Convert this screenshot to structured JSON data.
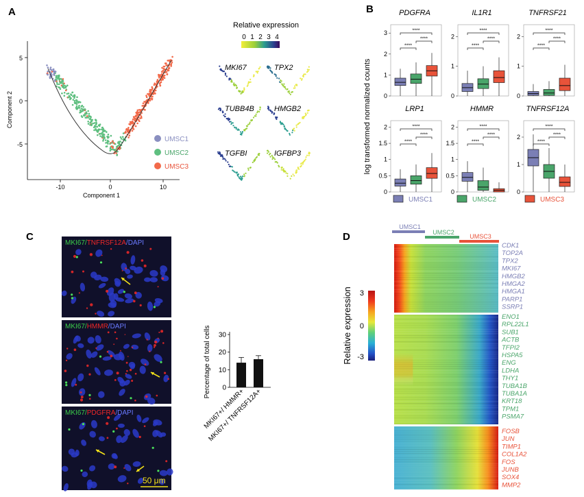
{
  "panel_labels": {
    "a": "A",
    "b": "B",
    "c": "C",
    "d": "D"
  },
  "colors": {
    "umsc1": "#8a8fc0",
    "umsc2": "#5fbf80",
    "umsc3": "#f26a4a",
    "gene1": "#7b7fb5",
    "gene2": "#4aa56a",
    "gene3": "#e8533a"
  },
  "panelA": {
    "xlabel": "Component 1",
    "ylabel": "Component 2",
    "xticks": [
      "-10",
      "0",
      "10"
    ],
    "yticks": [
      "5",
      "0",
      "-5"
    ],
    "legend": [
      "UMSC1",
      "UMSC2",
      "UMSC3"
    ],
    "expr_title": "Relative expression",
    "expr_ticks": [
      "0",
      "1",
      "2",
      "3",
      "4"
    ],
    "genes": [
      "MKI67",
      "TPX2",
      "TUBB4B",
      "HMGB2",
      "TGFBI",
      "IGFBP3"
    ]
  },
  "panelB": {
    "ylabel": "log transformed normalized counts",
    "stars": "****",
    "legend": [
      "UMSC1",
      "UMSC2",
      "UMSC3"
    ]
  },
  "chart_data": [
    {
      "type": "box",
      "title": "PDGFRA",
      "series": [
        "UMSC1",
        "UMSC2",
        "UMSC3"
      ],
      "yticks": [
        0,
        1,
        2,
        3
      ],
      "ylim": [
        0,
        3.4
      ],
      "boxes": [
        {
          "group": "UMSC1",
          "min": 0.0,
          "q1": 0.5,
          "median": 0.65,
          "q3": 0.85,
          "max": 1.3
        },
        {
          "group": "UMSC2",
          "min": 0.0,
          "q1": 0.6,
          "median": 0.8,
          "q3": 1.05,
          "max": 1.6
        },
        {
          "group": "UMSC3",
          "min": 0.0,
          "q1": 0.95,
          "median": 1.2,
          "q3": 1.45,
          "max": 2.05
        }
      ],
      "significance": [
        "1-2: ****",
        "2-3: ****",
        "1-3: ****"
      ]
    },
    {
      "type": "box",
      "title": "IL1R1",
      "series": [
        "UMSC1",
        "UMSC2",
        "UMSC3"
      ],
      "yticks": [
        0,
        1,
        2
      ],
      "ylim": [
        0,
        2.4
      ],
      "boxes": [
        {
          "group": "UMSC1",
          "min": 0.0,
          "q1": 0.15,
          "median": 0.28,
          "q3": 0.42,
          "max": 0.85
        },
        {
          "group": "UMSC2",
          "min": 0.0,
          "q1": 0.25,
          "median": 0.4,
          "q3": 0.58,
          "max": 1.0
        },
        {
          "group": "UMSC3",
          "min": 0.0,
          "q1": 0.45,
          "median": 0.62,
          "q3": 0.85,
          "max": 1.3
        }
      ],
      "significance": [
        "1-2: ****",
        "2-3: ****",
        "1-3: ****"
      ]
    },
    {
      "type": "box",
      "title": "TNFRSF21",
      "series": [
        "UMSC1",
        "UMSC2",
        "UMSC3"
      ],
      "yticks": [
        0,
        1,
        2
      ],
      "ylim": [
        0,
        2.4
      ],
      "boxes": [
        {
          "group": "UMSC1",
          "min": 0.0,
          "q1": 0.02,
          "median": 0.08,
          "q3": 0.15,
          "max": 0.4
        },
        {
          "group": "UMSC2",
          "min": 0.0,
          "q1": 0.02,
          "median": 0.1,
          "q3": 0.22,
          "max": 0.5
        },
        {
          "group": "UMSC3",
          "min": 0.0,
          "q1": 0.18,
          "median": 0.35,
          "q3": 0.6,
          "max": 1.05
        }
      ],
      "significance": [
        "1-2: ****",
        "2-3: ****",
        "1-3: ****"
      ]
    },
    {
      "type": "box",
      "title": "LRP1",
      "series": [
        "UMSC1",
        "UMSC2",
        "UMSC3"
      ],
      "yticks": [
        0,
        0.5,
        1.0,
        1.5,
        2.0
      ],
      "ylim": [
        0,
        2.2
      ],
      "boxes": [
        {
          "group": "UMSC1",
          "min": 0.0,
          "q1": 0.18,
          "median": 0.27,
          "q3": 0.4,
          "max": 0.7
        },
        {
          "group": "UMSC2",
          "min": 0.0,
          "q1": 0.24,
          "median": 0.35,
          "q3": 0.5,
          "max": 0.85
        },
        {
          "group": "UMSC3",
          "min": 0.0,
          "q1": 0.42,
          "median": 0.57,
          "q3": 0.75,
          "max": 1.2
        }
      ],
      "significance": [
        "1-2: ****",
        "2-3: ****",
        "1-3: ****"
      ]
    },
    {
      "type": "box",
      "title": "HMMR",
      "series": [
        "UMSC1",
        "UMSC2",
        "UMSC3"
      ],
      "yticks": [
        0,
        0.5,
        1.0,
        1.5,
        2.0
      ],
      "ylim": [
        0,
        2.2
      ],
      "boxes": [
        {
          "group": "UMSC1",
          "min": 0.0,
          "q1": 0.33,
          "median": 0.45,
          "q3": 0.6,
          "max": 0.95
        },
        {
          "group": "UMSC2",
          "min": 0.0,
          "q1": 0.05,
          "median": 0.15,
          "q3": 0.35,
          "max": 0.75
        },
        {
          "group": "UMSC3",
          "min": 0.0,
          "q1": 0.0,
          "median": 0.05,
          "q3": 0.1,
          "max": 0.3
        }
      ],
      "significance": [
        "1-2: ****",
        "2-3: ****",
        "1-3: ****"
      ]
    },
    {
      "type": "box",
      "title": "TNFRSF12A",
      "series": [
        "UMSC1",
        "UMSC2",
        "UMSC3"
      ],
      "yticks": [
        0,
        1,
        2
      ],
      "ylim": [
        0,
        2.6
      ],
      "boxes": [
        {
          "group": "UMSC1",
          "min": 0.0,
          "q1": 0.95,
          "median": 1.25,
          "q3": 1.55,
          "max": 2.1
        },
        {
          "group": "UMSC2",
          "min": 0.0,
          "q1": 0.5,
          "median": 0.75,
          "q3": 1.0,
          "max": 1.6
        },
        {
          "group": "UMSC3",
          "min": 0.0,
          "q1": 0.2,
          "median": 0.35,
          "q3": 0.55,
          "max": 1.0
        }
      ],
      "significance": [
        "1-2: ****",
        "2-3: ****",
        "1-3: ****"
      ]
    },
    {
      "type": "bar",
      "categories": [
        "MKI67+/ HMMR+",
        "MKI67+/ TNFRSF12A+"
      ],
      "values": [
        14,
        16
      ],
      "errors": [
        3,
        2
      ],
      "ylabel": "Percentage of total cells",
      "yticks": [
        0,
        10,
        20,
        30
      ],
      "ylim": [
        0,
        30
      ]
    }
  ],
  "panelC": {
    "images": [
      {
        "stain1": "MKI67",
        "stain2": "TNFRSF12A",
        "stain3": "DAPI"
      },
      {
        "stain1": "MKI67",
        "stain2": "HMMR",
        "stain3": "DAPI"
      },
      {
        "stain1": "MKI67",
        "stain2": "PDGFRA",
        "stain3": "DAPI"
      }
    ],
    "sep": "/",
    "scalebar": "50 μm"
  },
  "panelD": {
    "clusters": [
      "UMSC1",
      "UMSC2",
      "UMSC3"
    ],
    "colorbar_title": "Relative expression",
    "colorbar_ticks": [
      "3",
      "0",
      "-3"
    ],
    "genes_group1": [
      "CDK1",
      "TOP2A",
      "TPX2",
      "MKI67",
      "HMGB2",
      "HMGA2",
      "HMGA1",
      "PARP1",
      "SSRP1"
    ],
    "genes_group2": [
      "ENO1",
      "RPL22L1",
      "SUB1",
      "ACTB",
      "TFPI2",
      "HSPA5",
      "ENG",
      "LDHA",
      "THY1",
      "TUBA1B",
      "TUBA1A",
      "KRT18",
      "TPM1",
      "PSMA7"
    ],
    "genes_group3": [
      "FOSB",
      "JUN",
      "TIMP1",
      "COL1A2",
      "FOS",
      "JUNB",
      "SOX4",
      "MMP2"
    ]
  }
}
